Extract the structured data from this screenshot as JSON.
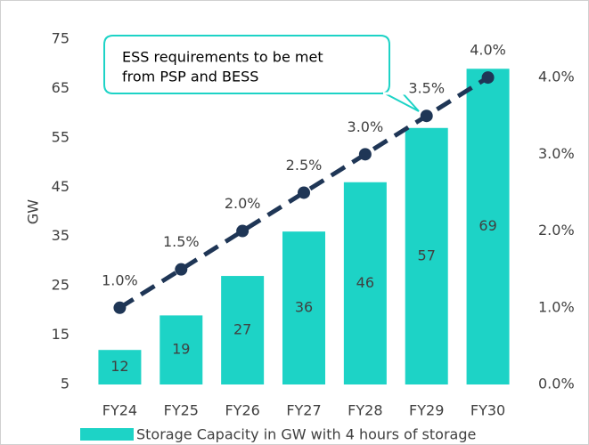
{
  "chart_data": {
    "type": "bar",
    "categories": [
      "FY24",
      "FY25",
      "FY26",
      "FY27",
      "FY28",
      "FY29",
      "FY30"
    ],
    "y_label": "GW",
    "ylim": [
      5,
      75
    ],
    "yticks": [
      5,
      15,
      25,
      35,
      45,
      55,
      65,
      75
    ],
    "y2lim": [
      0,
      4.5
    ],
    "y2ticks": [
      {
        "value": 0,
        "label": "0.0%"
      },
      {
        "value": 1,
        "label": "1.0%"
      },
      {
        "value": 2,
        "label": "2.0%"
      },
      {
        "value": 3,
        "label": "3.0%"
      },
      {
        "value": 4,
        "label": "4.0%"
      }
    ],
    "series": [
      {
        "name": "Storage Capacity in GW with 4 hours of storage",
        "type": "bar",
        "color": "#1dd3c6",
        "values": [
          12,
          19,
          27,
          36,
          46,
          57,
          69
        ]
      },
      {
        "type": "line",
        "axis": "y2",
        "color": "#1f3656",
        "values": [
          1,
          1.5,
          2,
          2.5,
          3,
          3.5,
          4
        ],
        "value_labels": [
          "1.0%",
          "1.5%",
          "2.0%",
          "2.5%",
          "3.0%",
          "3.5%",
          "4.0%"
        ]
      }
    ],
    "annotation": [
      "ESS requirements to be met",
      "from PSP and BESS"
    ],
    "legend": "bottom"
  }
}
